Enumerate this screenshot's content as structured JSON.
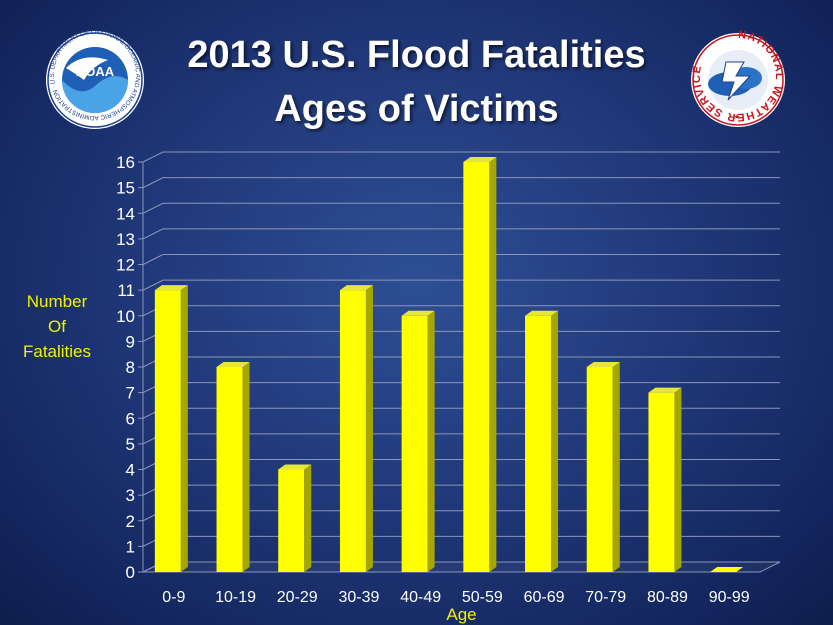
{
  "title_line1": "2013 U.S. Flood Fatalities",
  "title_line2": "Ages of Victims",
  "ylabel_lines": [
    "Number",
    "Of",
    "Fatalities"
  ],
  "xlabel": "Age",
  "logos": {
    "noaa_text": "NOAA",
    "noaa_ring": "NATIONAL OCEANIC AND ATMOSPHERIC ADMINISTRATION · U.S. DEPARTMENT OF COMMERCE",
    "nws_ring": "NATIONAL WEATHER SERVICE"
  },
  "colors": {
    "bar_front": "#ffff00",
    "bar_side": "#a6a600",
    "bar_top": "#e6e63a",
    "label_yellow": "#f2f200",
    "tick_text": "#ffffff"
  },
  "chart_data": {
    "type": "bar",
    "title": "2013 U.S. Flood Fatalities Ages of Victims",
    "xlabel": "Age",
    "ylabel": "Number Of Fatalities",
    "categories": [
      "0-9",
      "10-19",
      "20-29",
      "30-39",
      "40-49",
      "50-59",
      "60-69",
      "70-79",
      "80-89",
      "90-99"
    ],
    "values": [
      11,
      8,
      4,
      11,
      10,
      16,
      10,
      8,
      7,
      0
    ],
    "ylim": [
      0,
      16
    ],
    "yticks": [
      0,
      1,
      2,
      3,
      4,
      5,
      6,
      7,
      8,
      9,
      10,
      11,
      12,
      13,
      14,
      15,
      16
    ],
    "grid": true,
    "legend": "none"
  }
}
